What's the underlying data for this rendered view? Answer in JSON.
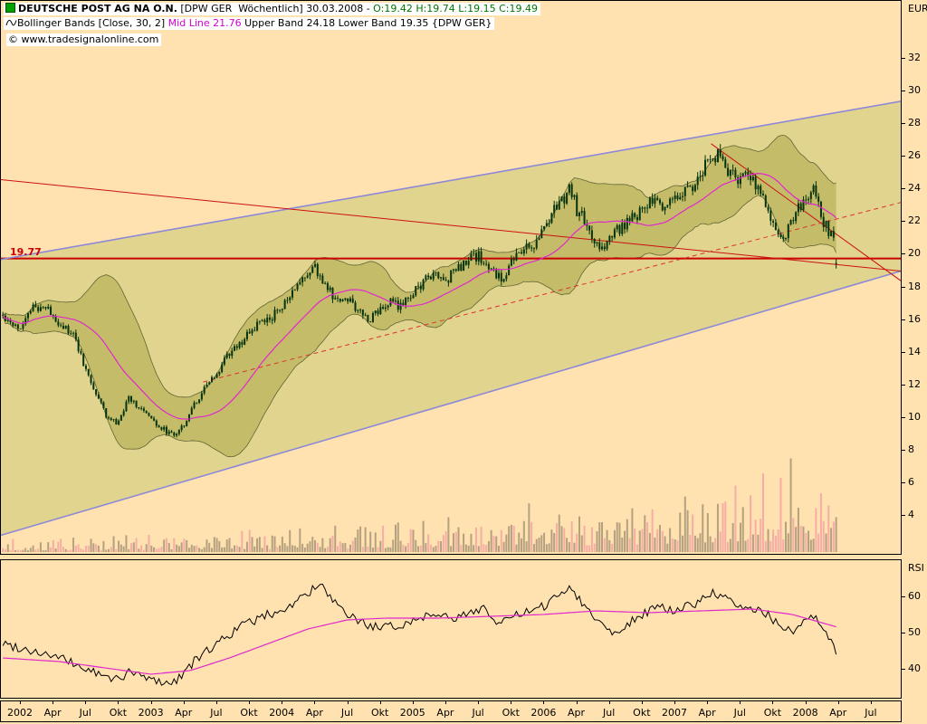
{
  "header": {
    "line1": {
      "name": "DEUTSCHE POST AG NA O.N.",
      "detail": " [DPW GER  Wöchentlich] 30.03.2008 - ",
      "ohlc": "O:19.42 H:19.74 L:19.15 C:19.49"
    },
    "line2": {
      "pre": "Bollinger Bands [Close, 30, 2] ",
      "mid": "Mid Line 21.76",
      "post": " Upper Band 24.18 Lower Band 19.35 {DPW GER}"
    },
    "copyright": "© www.tradesignalonline.com"
  },
  "axes": {
    "price_unit": "EUR",
    "price_ticks": [
      32,
      30,
      28,
      26,
      24,
      22,
      20,
      18,
      16,
      14,
      12,
      10,
      8,
      6,
      4
    ],
    "rsi_label": "RSI",
    "rsi_ticks": [
      60,
      50,
      40
    ],
    "x_labels": [
      {
        "t": 2002.0,
        "text": "2002"
      },
      {
        "t": 2002.25,
        "text": "Apr"
      },
      {
        "t": 2002.5,
        "text": "Jul"
      },
      {
        "t": 2002.75,
        "text": "Okt"
      },
      {
        "t": 2003.0,
        "text": "2003"
      },
      {
        "t": 2003.25,
        "text": "Apr"
      },
      {
        "t": 2003.5,
        "text": "Jul"
      },
      {
        "t": 2003.75,
        "text": "Okt"
      },
      {
        "t": 2004.0,
        "text": "2004"
      },
      {
        "t": 2004.25,
        "text": "Apr"
      },
      {
        "t": 2004.5,
        "text": "Jul"
      },
      {
        "t": 2004.75,
        "text": "Okt"
      },
      {
        "t": 2005.0,
        "text": "2005"
      },
      {
        "t": 2005.25,
        "text": "Apr"
      },
      {
        "t": 2005.5,
        "text": "Jul"
      },
      {
        "t": 2005.75,
        "text": "Okt"
      },
      {
        "t": 2006.0,
        "text": "2006"
      },
      {
        "t": 2006.25,
        "text": "Apr"
      },
      {
        "t": 2006.5,
        "text": "Jul"
      },
      {
        "t": 2006.75,
        "text": "Okt"
      },
      {
        "t": 2007.0,
        "text": "2007"
      },
      {
        "t": 2007.25,
        "text": "Apr"
      },
      {
        "t": 2007.5,
        "text": "Jul"
      },
      {
        "t": 2007.75,
        "text": "Okt"
      },
      {
        "t": 2008.0,
        "text": "2008"
      },
      {
        "t": 2008.25,
        "text": "Apr"
      },
      {
        "t": 2008.5,
        "text": "Jul"
      }
    ]
  },
  "annotations": {
    "hline": {
      "price": 19.77,
      "label": "19.77"
    }
  },
  "colors": {
    "background": "#ffe2b0",
    "candle": "#05330c",
    "channel_fill": "rgba(170,185,80,0.35)",
    "channel_line": "#8d88d8",
    "bollinger_fill": "rgba(150,150,45,0.38)",
    "band_edge": "rgba(50,60,25,0.7)",
    "mid_line": "#e028cc",
    "trend_red": "#cc1111",
    "hline_red": "#cc0000",
    "volume_gray": "rgba(120,105,90,0.55)",
    "volume_pink": "rgba(240,145,160,0.65)",
    "ohlc_green": "#007700",
    "rsi_line": "#000000",
    "rsi_ma": "#e028cc"
  },
  "chart_data": [
    {
      "type": "candlestick+volume",
      "title": "DEUTSCHE POST AG NA O.N. (DPW GER), weekly, 2002-2008",
      "ylabel": "EUR",
      "x_domain": [
        2001.85,
        2008.73
      ],
      "y_ticks": [
        4,
        6,
        8,
        10,
        12,
        14,
        16,
        18,
        20,
        22,
        24,
        26,
        28,
        30,
        32
      ],
      "t_start": 2001.87,
      "t_end": 2008.245,
      "last_ohlc": [
        19.42,
        19.74,
        19.15,
        19.49
      ],
      "bollinger": {
        "period": 30,
        "mult": 2,
        "source": "Close",
        "current_mid": 21.76,
        "current_upper": 24.18,
        "current_lower": 19.35
      },
      "monthly_closes": [
        [
          2001.87,
          16.2
        ],
        [
          2001.94,
          15.9
        ],
        [
          2002.0,
          15.6
        ],
        [
          2002.08,
          16.6
        ],
        [
          2002.17,
          16.9
        ],
        [
          2002.25,
          16.3
        ],
        [
          2002.33,
          15.6
        ],
        [
          2002.42,
          14.9
        ],
        [
          2002.5,
          13.0
        ],
        [
          2002.58,
          11.5
        ],
        [
          2002.67,
          10.0
        ],
        [
          2002.75,
          9.6
        ],
        [
          2002.83,
          11.3
        ],
        [
          2002.92,
          10.6
        ],
        [
          2003.0,
          9.9
        ],
        [
          2003.08,
          9.4
        ],
        [
          2003.17,
          8.9
        ],
        [
          2003.25,
          9.6
        ],
        [
          2003.33,
          10.8
        ],
        [
          2003.42,
          11.9
        ],
        [
          2003.5,
          12.6
        ],
        [
          2003.58,
          13.8
        ],
        [
          2003.67,
          14.4
        ],
        [
          2003.75,
          15.2
        ],
        [
          2003.83,
          15.8
        ],
        [
          2003.92,
          16.1
        ],
        [
          2004.0,
          16.8
        ],
        [
          2004.08,
          17.6
        ],
        [
          2004.17,
          18.6
        ],
        [
          2004.25,
          19.2
        ],
        [
          2004.33,
          18.2
        ],
        [
          2004.42,
          17.1
        ],
        [
          2004.5,
          17.4
        ],
        [
          2004.58,
          16.6
        ],
        [
          2004.67,
          16.1
        ],
        [
          2004.75,
          16.7
        ],
        [
          2004.83,
          17.1
        ],
        [
          2004.92,
          16.8
        ],
        [
          2005.0,
          17.6
        ],
        [
          2005.08,
          18.3
        ],
        [
          2005.17,
          18.9
        ],
        [
          2005.25,
          18.4
        ],
        [
          2005.33,
          19.1
        ],
        [
          2005.42,
          19.6
        ],
        [
          2005.5,
          19.9
        ],
        [
          2005.58,
          19.2
        ],
        [
          2005.67,
          18.5
        ],
        [
          2005.75,
          19.4
        ],
        [
          2005.83,
          20.3
        ],
        [
          2005.92,
          20.6
        ],
        [
          2006.0,
          21.6
        ],
        [
          2006.08,
          22.9
        ],
        [
          2006.17,
          23.6
        ],
        [
          2006.21,
          24.1
        ],
        [
          2006.25,
          22.8
        ],
        [
          2006.33,
          21.9
        ],
        [
          2006.42,
          20.4
        ],
        [
          2006.5,
          20.9
        ],
        [
          2006.58,
          21.6
        ],
        [
          2006.67,
          22.1
        ],
        [
          2006.75,
          22.6
        ],
        [
          2006.83,
          23.3
        ],
        [
          2006.92,
          22.9
        ],
        [
          2007.0,
          23.6
        ],
        [
          2007.08,
          24.1
        ],
        [
          2007.17,
          24.4
        ],
        [
          2007.25,
          25.6
        ],
        [
          2007.33,
          26.2
        ],
        [
          2007.42,
          25.1
        ],
        [
          2007.5,
          24.4
        ],
        [
          2007.58,
          24.9
        ],
        [
          2007.67,
          23.6
        ],
        [
          2007.75,
          21.9
        ],
        [
          2007.83,
          20.9
        ],
        [
          2007.92,
          22.4
        ],
        [
          2008.0,
          23.5
        ],
        [
          2008.06,
          23.9
        ],
        [
          2008.1,
          23.0
        ],
        [
          2008.14,
          22.0
        ],
        [
          2008.18,
          21.4
        ],
        [
          2008.22,
          20.8
        ],
        [
          2008.245,
          19.49
        ]
      ],
      "volume_profile": [
        [
          2001.87,
          8
        ],
        [
          2002.5,
          10
        ],
        [
          2003.0,
          12
        ],
        [
          2004.0,
          16
        ],
        [
          2005.0,
          22
        ],
        [
          2006.0,
          30
        ],
        [
          2006.5,
          36
        ],
        [
          2007.0,
          46
        ],
        [
          2007.5,
          56
        ],
        [
          2008.0,
          64
        ],
        [
          2008.245,
          56
        ]
      ],
      "trendlines": [
        {
          "name": "horizontal-19.77",
          "points": [
            [
              2001.85,
              19.77
            ],
            [
              2008.73,
              19.77
            ]
          ],
          "color": "#cc0000",
          "width": 2
        },
        {
          "name": "channel-upper",
          "points": [
            [
              2001.85,
              19.7
            ],
            [
              2008.73,
              29.4
            ]
          ],
          "color": "#8d88d8",
          "width": 1.6
        },
        {
          "name": "channel-lower",
          "points": [
            [
              2001.85,
              2.8
            ],
            [
              2008.73,
              19.0
            ]
          ],
          "color": "#8d88d8",
          "width": 1.6
        },
        {
          "name": "downtrend-long",
          "points": [
            [
              2001.85,
              24.6
            ],
            [
              2008.73,
              19.0
            ]
          ],
          "color": "#cc1111",
          "width": 1
        },
        {
          "name": "downtrend-2007",
          "points": [
            [
              2007.28,
              26.8
            ],
            [
              2008.73,
              18.4
            ]
          ],
          "color": "#cc1111",
          "width": 1
        },
        {
          "name": "uptrend-dashed",
          "points": [
            [
              2003.4,
              12.2
            ],
            [
              2008.73,
              23.2
            ]
          ],
          "color": "#dd3333",
          "width": 1,
          "dash": "5,4"
        }
      ]
    },
    {
      "type": "line",
      "title": "RSI",
      "y_domain": [
        31.5,
        69.5
      ],
      "y_ticks": [
        60,
        50,
        40
      ],
      "rsi": [
        [
          2001.87,
          47
        ],
        [
          2002.1,
          45
        ],
        [
          2002.3,
          43
        ],
        [
          2002.5,
          40
        ],
        [
          2002.7,
          37
        ],
        [
          2002.85,
          39
        ],
        [
          2003.0,
          37
        ],
        [
          2003.17,
          36
        ],
        [
          2003.3,
          41
        ],
        [
          2003.5,
          47
        ],
        [
          2003.7,
          52
        ],
        [
          2003.9,
          55
        ],
        [
          2004.05,
          57
        ],
        [
          2004.2,
          61
        ],
        [
          2004.3,
          63
        ],
        [
          2004.45,
          56
        ],
        [
          2004.6,
          53
        ],
        [
          2004.75,
          51
        ],
        [
          2004.9,
          52
        ],
        [
          2005.05,
          54
        ],
        [
          2005.2,
          56
        ],
        [
          2005.3,
          53
        ],
        [
          2005.45,
          56
        ],
        [
          2005.55,
          57
        ],
        [
          2005.65,
          52
        ],
        [
          2005.8,
          55
        ],
        [
          2005.95,
          56
        ],
        [
          2006.1,
          60
        ],
        [
          2006.2,
          63
        ],
        [
          2006.3,
          58
        ],
        [
          2006.45,
          52
        ],
        [
          2006.55,
          50
        ],
        [
          2006.7,
          54
        ],
        [
          2006.85,
          57
        ],
        [
          2007.0,
          56
        ],
        [
          2007.15,
          58
        ],
        [
          2007.3,
          61
        ],
        [
          2007.4,
          59
        ],
        [
          2007.55,
          56
        ],
        [
          2007.65,
          57
        ],
        [
          2007.8,
          52
        ],
        [
          2007.9,
          50
        ],
        [
          2008.0,
          53
        ],
        [
          2008.08,
          54
        ],
        [
          2008.15,
          50
        ],
        [
          2008.2,
          47
        ],
        [
          2008.245,
          44
        ]
      ],
      "rsi_ma": [
        [
          2001.87,
          43
        ],
        [
          2002.3,
          42
        ],
        [
          2002.7,
          40
        ],
        [
          2003.0,
          38.5
        ],
        [
          2003.3,
          39.5
        ],
        [
          2003.6,
          43
        ],
        [
          2003.9,
          47
        ],
        [
          2004.2,
          51
        ],
        [
          2004.5,
          53.5
        ],
        [
          2004.8,
          54
        ],
        [
          2005.2,
          54
        ],
        [
          2005.6,
          54.5
        ],
        [
          2006.0,
          55
        ],
        [
          2006.4,
          56
        ],
        [
          2006.8,
          55.5
        ],
        [
          2007.2,
          56
        ],
        [
          2007.6,
          56.5
        ],
        [
          2007.9,
          55
        ],
        [
          2008.1,
          53
        ],
        [
          2008.245,
          51.5
        ]
      ]
    }
  ]
}
